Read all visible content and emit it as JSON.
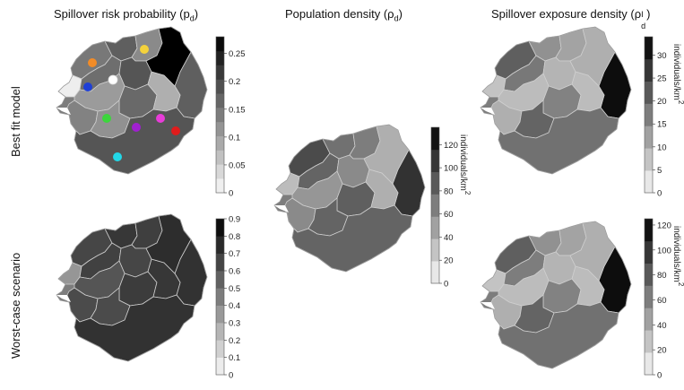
{
  "figure": {
    "title_risk": "Spillover risk probability (p",
    "title_risk_sub": "d",
    "title_risk_close": ")",
    "title_pop": "Population density (ρ",
    "title_pop_sub": "d",
    "title_pop_close": ")",
    "title_exposure": "Spillover exposure density (ρ",
    "title_exposure_sup": "I",
    "title_exposure_sub": "d",
    "title_exposure_close": ")",
    "row_best": "Best  fit model",
    "row_worst": "Worst-case scenario",
    "unit_label": "individuals/km",
    "unit_power": "2"
  },
  "chart_data": [
    {
      "type": "heatmap",
      "id": "risk-best",
      "title": "Spillover risk probability (p_d)",
      "row": "Best fit model",
      "colorbar": {
        "range": [
          0,
          0.28
        ],
        "ticks": [
          "0",
          "0.05",
          "0.1",
          "0.15",
          "0.2",
          "0.25"
        ],
        "tick_values": [
          0,
          0.05,
          0.1,
          0.15,
          0.2,
          0.25
        ],
        "steps": 11,
        "label": ""
      },
      "district_shades": [
        0.52,
        0.05,
        0.62,
        0.56,
        0.45,
        0.66,
        0.38,
        0.62,
        0.48,
        0.58,
        0.42,
        0.3,
        1.0,
        0.66
      ],
      "markers": [
        {
          "name": "orange",
          "color": "#f28c28"
        },
        {
          "name": "yellow",
          "color": "#f4d23c"
        },
        {
          "name": "blue",
          "color": "#1e3fd6"
        },
        {
          "name": "white",
          "color": "#ffffff"
        },
        {
          "name": "green",
          "color": "#3cd63c"
        },
        {
          "name": "purple",
          "color": "#a020d0"
        },
        {
          "name": "magenta",
          "color": "#e83cd8"
        },
        {
          "name": "red",
          "color": "#e01c1c"
        },
        {
          "name": "cyan",
          "color": "#22d8e8"
        }
      ]
    },
    {
      "type": "heatmap",
      "id": "risk-worst",
      "title": "Spillover risk probability (p_d)",
      "row": "Worst-case scenario",
      "colorbar": {
        "range": [
          0,
          0.9
        ],
        "ticks": [
          "0",
          "0.1",
          "0.2",
          "0.3",
          "0.4",
          "0.5",
          "0.6",
          "0.7",
          "0.8",
          "0.9"
        ],
        "tick_values": [
          0,
          0.1,
          0.2,
          0.3,
          0.4,
          0.5,
          0.6,
          0.7,
          0.8,
          0.9
        ],
        "steps": 9,
        "label": ""
      },
      "district_shades": [
        0.72,
        0.4,
        0.78,
        0.74,
        0.75,
        0.72,
        0.66,
        0.8,
        0.7,
        0.76,
        0.7,
        0.78,
        0.82,
        0.8
      ]
    },
    {
      "type": "heatmap",
      "id": "population",
      "title": "Population density (ρ_d)",
      "colorbar": {
        "range": [
          0,
          135
        ],
        "ticks": [
          "0",
          "20",
          "40",
          "60",
          "80",
          "100",
          "120"
        ],
        "tick_values": [
          0,
          20,
          40,
          60,
          80,
          100,
          120
        ],
        "steps": 7,
        "label": "individuals/km²"
      },
      "district_shades": [
        0.7,
        0.25,
        0.55,
        0.6,
        0.5,
        0.45,
        0.4,
        0.8,
        0.45,
        0.62,
        0.6,
        0.3,
        0.3,
        0.6
      ]
    },
    {
      "type": "heatmap",
      "id": "exposure-best",
      "title": "Spillover exposure density (ρI_d)",
      "row": "Best fit model",
      "colorbar": {
        "range": [
          0,
          34
        ],
        "ticks": [
          "0",
          "5",
          "10",
          "15",
          "20",
          "25",
          "30"
        ],
        "tick_values": [
          0,
          5,
          10,
          15,
          20,
          25,
          30
        ],
        "steps": 7,
        "label": "individuals/km²"
      },
      "district_shades": [
        0.62,
        0.22,
        0.42,
        0.52,
        0.35,
        0.28,
        0.25,
        0.95,
        0.3,
        0.48,
        0.6,
        0.25,
        0.3,
        0.55
      ]
    },
    {
      "type": "heatmap",
      "id": "exposure-worst",
      "title": "Spillover exposure density (ρI_d)",
      "row": "Worst-case scenario",
      "colorbar": {
        "range": [
          0,
          125
        ],
        "ticks": [
          "0",
          "20",
          "40",
          "60",
          "80",
          "100",
          "120"
        ],
        "tick_values": [
          0,
          20,
          40,
          60,
          80,
          100,
          120
        ],
        "steps": 7,
        "label": "individuals/km²"
      },
      "district_shades": [
        0.62,
        0.22,
        0.42,
        0.5,
        0.35,
        0.28,
        0.25,
        0.95,
        0.3,
        0.48,
        0.6,
        0.25,
        0.3,
        0.55
      ]
    }
  ]
}
